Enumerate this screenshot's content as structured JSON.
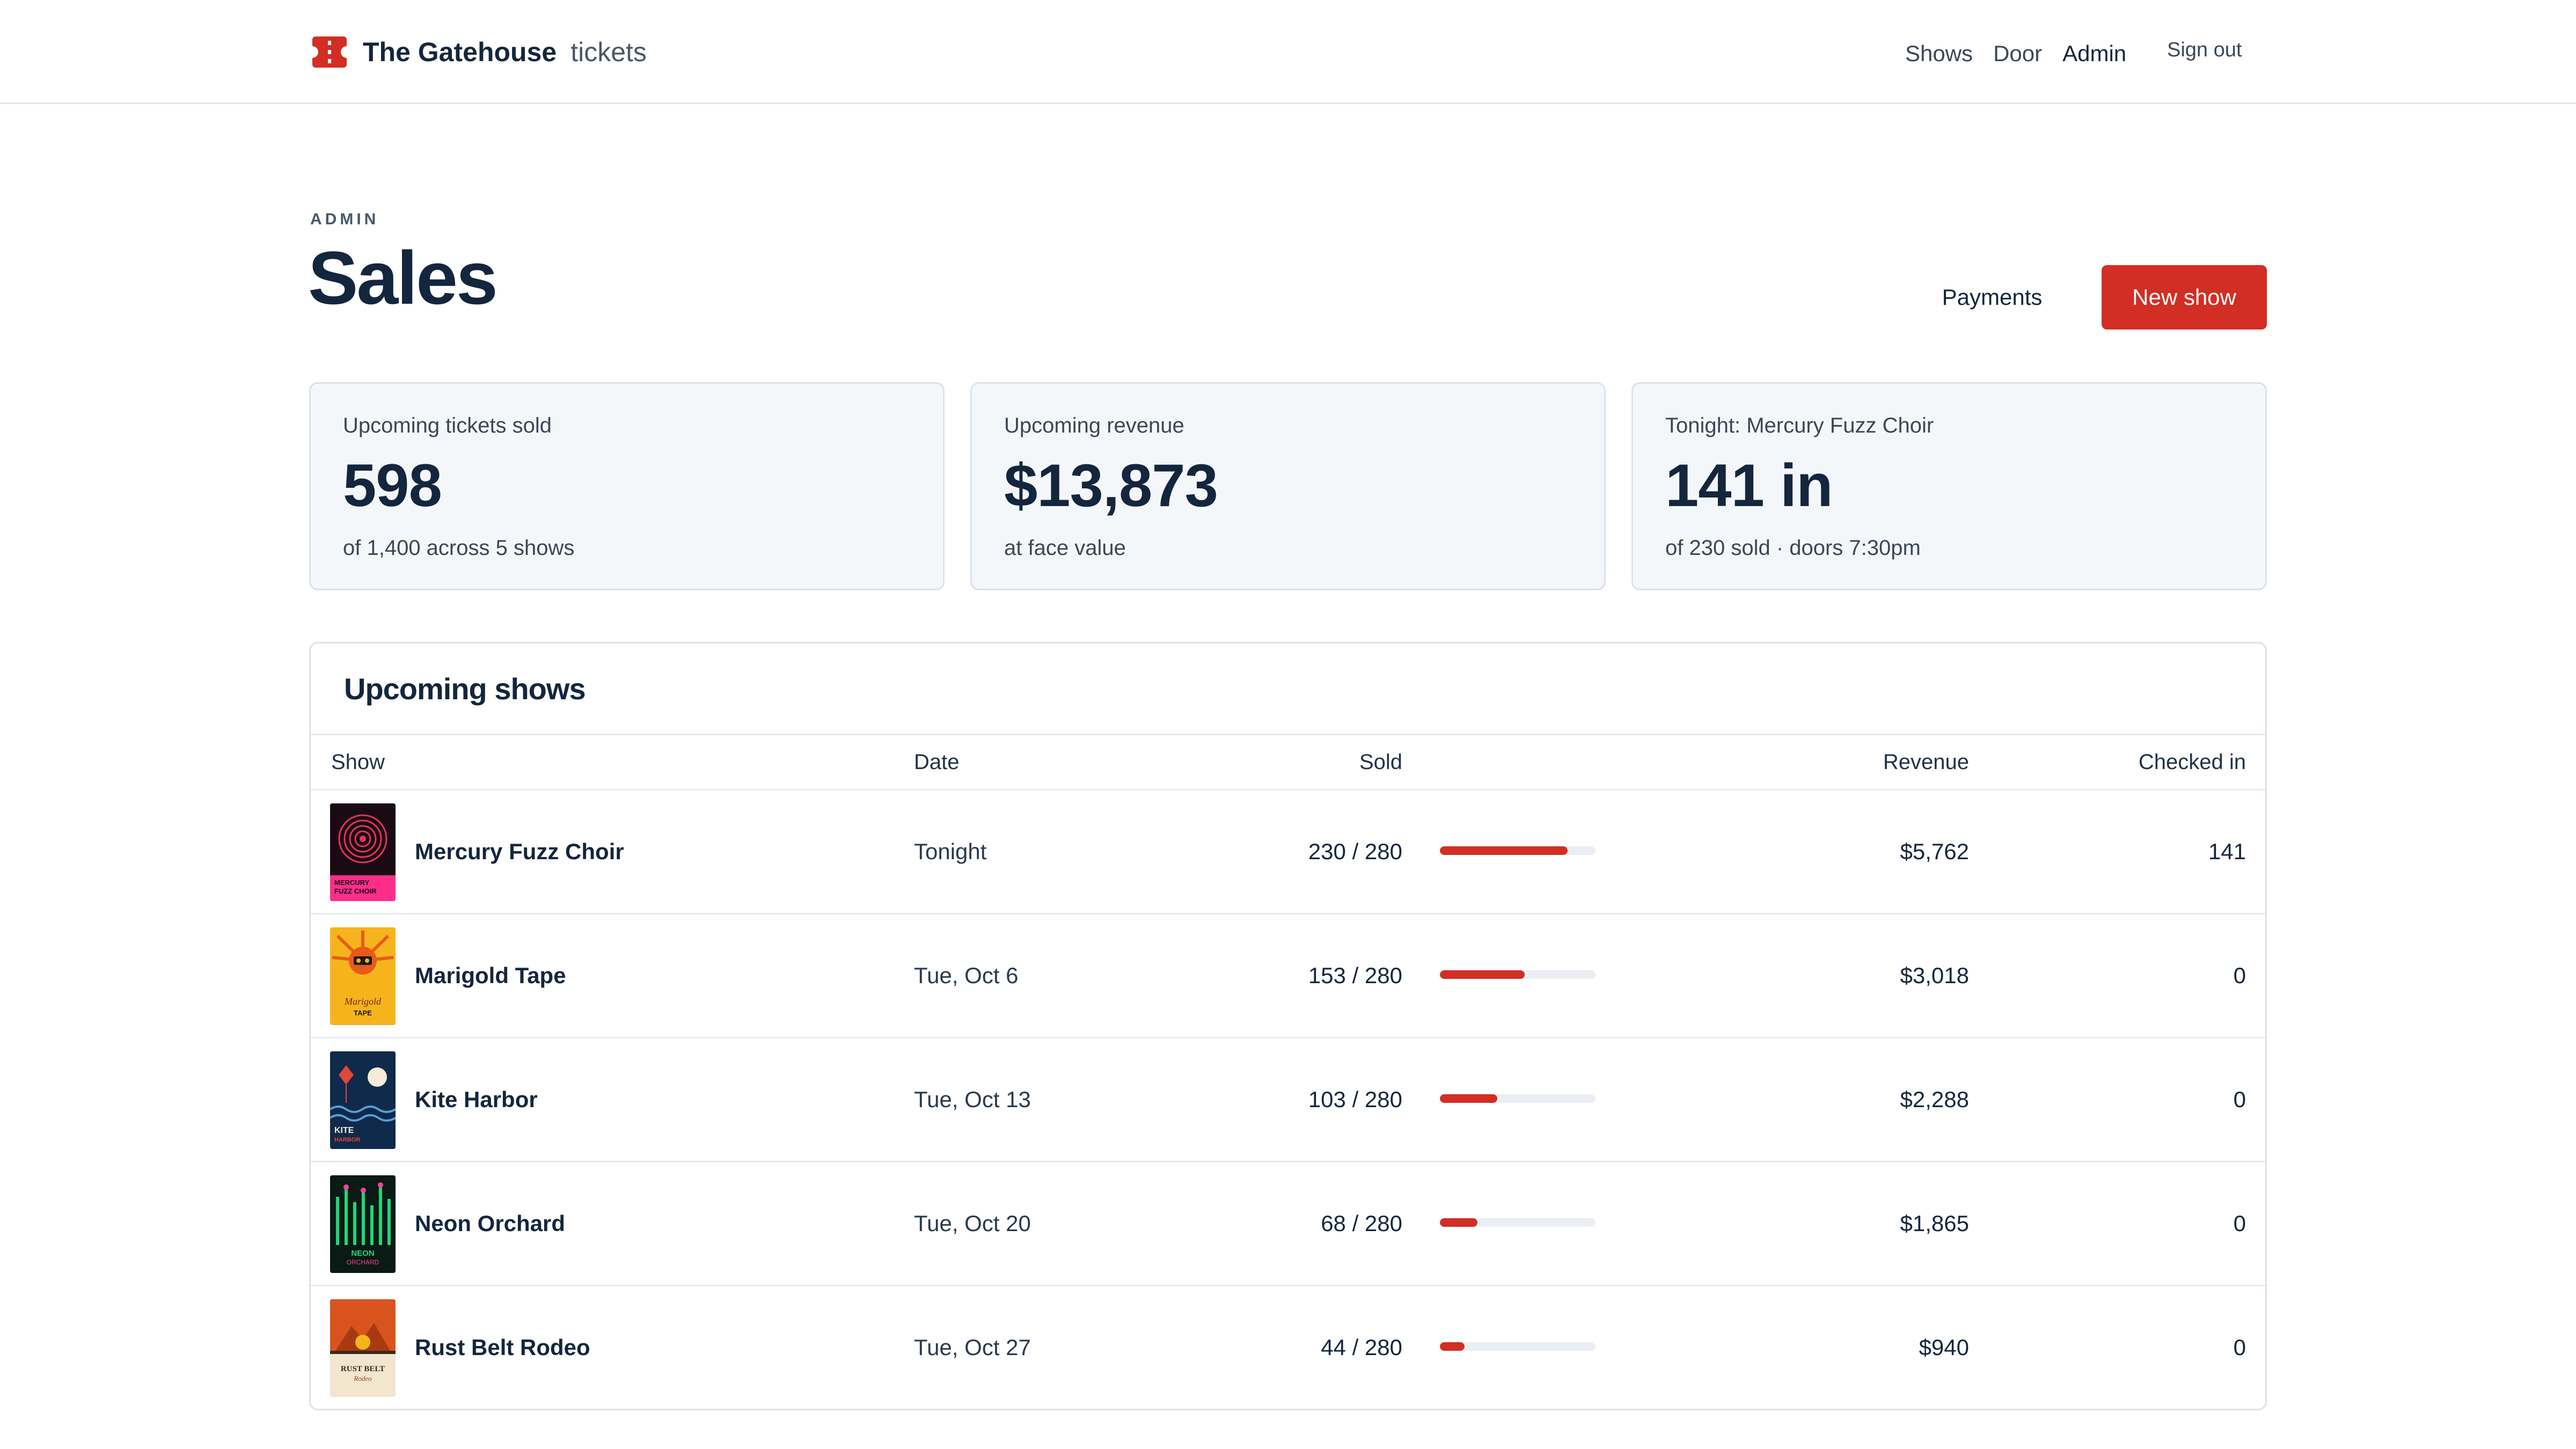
{
  "brand": {
    "name": "The Gatehouse",
    "sub": "tickets"
  },
  "nav": {
    "shows": "Shows",
    "door": "Door",
    "admin": "Admin",
    "sign_out": "Sign out"
  },
  "header": {
    "eyebrow": "ADMIN",
    "title": "Sales",
    "payments_label": "Payments",
    "new_show_label": "New show"
  },
  "stats": [
    {
      "label": "Upcoming tickets sold",
      "value": "598",
      "sub": "of 1,400 across 5 shows"
    },
    {
      "label": "Upcoming revenue",
      "value": "$13,873",
      "sub": "at face value"
    },
    {
      "label": "Tonight: Mercury Fuzz Choir",
      "value": "141 in",
      "sub": "of 230 sold · doors 7:30pm"
    }
  ],
  "table": {
    "title": "Upcoming shows",
    "columns": {
      "show": "Show",
      "date": "Date",
      "sold": "Sold",
      "revenue": "Revenue",
      "checked_in": "Checked in"
    },
    "rows": [
      {
        "name": "Mercury Fuzz Choir",
        "date": "Tonight",
        "sold": "230 / 280",
        "sold_fraction": 0.821,
        "revenue": "$5,762",
        "checked_in": "141"
      },
      {
        "name": "Marigold Tape",
        "date": "Tue, Oct 6",
        "sold": "153 / 280",
        "sold_fraction": 0.546,
        "revenue": "$3,018",
        "checked_in": "0"
      },
      {
        "name": "Kite Harbor",
        "date": "Tue, Oct 13",
        "sold": "103 / 280",
        "sold_fraction": 0.368,
        "revenue": "$2,288",
        "checked_in": "0"
      },
      {
        "name": "Neon Orchard",
        "date": "Tue, Oct 20",
        "sold": "68 / 280",
        "sold_fraction": 0.243,
        "revenue": "$1,865",
        "checked_in": "0"
      },
      {
        "name": "Rust Belt Rodeo",
        "date": "Tue, Oct 27",
        "sold": "44 / 280",
        "sold_fraction": 0.157,
        "revenue": "$940",
        "checked_in": "0"
      }
    ]
  },
  "posters": {
    "mercury": {
      "top": "MERCURY",
      "bottom": "FUZZ CHOIR"
    },
    "marigold": {
      "top": "Marigold",
      "bottom": "TAPE"
    },
    "kite": {
      "top": "KITE",
      "bottom": "HARBOR"
    },
    "neon": {
      "top": "NEON",
      "bottom": "ORCHARD"
    },
    "rust": {
      "top": "RUST BELT",
      "bottom": "Rodeo"
    }
  },
  "colors": {
    "accent": "#d22e24",
    "text": "#13263d",
    "card_bg": "#f4f7fa",
    "border": "#dbe2ea"
  }
}
